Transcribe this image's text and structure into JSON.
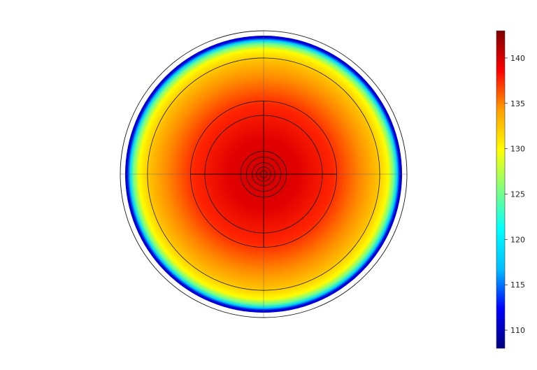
{
  "chart_data": {
    "type": "heatmap",
    "subtype": "circular-cross-section",
    "title": "",
    "xlabel": "",
    "ylabel": "",
    "colormap": "jet",
    "colormap_stops": [
      "#00007f",
      "#0000ff",
      "#00bfff",
      "#00ffff",
      "#7fff7f",
      "#ffff00",
      "#ff9f00",
      "#ff0000",
      "#7f0000"
    ],
    "colorbar_range": [
      108,
      143
    ],
    "colorbar_ticks": [
      "110",
      "115",
      "120",
      "125",
      "130",
      "135",
      "140"
    ],
    "colorbar_tick_values": [
      110,
      115,
      120,
      125,
      130,
      135,
      140
    ],
    "radial_profile": {
      "r_fraction": [
        0.0,
        0.25,
        0.5,
        0.7,
        0.82,
        0.9,
        0.94,
        0.965,
        0.985
      ],
      "value": [
        140.2,
        139.6,
        137.6,
        134.8,
        132.8,
        130.0,
        125.0,
        118.0,
        111.0
      ]
    },
    "annulus_gap_value": null,
    "contour_circle_radius_fractions": [
      1.0,
      0.81,
      0.51,
      0.41,
      0.16,
      0.12,
      0.08,
      0.05,
      0.025
    ],
    "crosshair": true,
    "colorbar_position": "right"
  }
}
